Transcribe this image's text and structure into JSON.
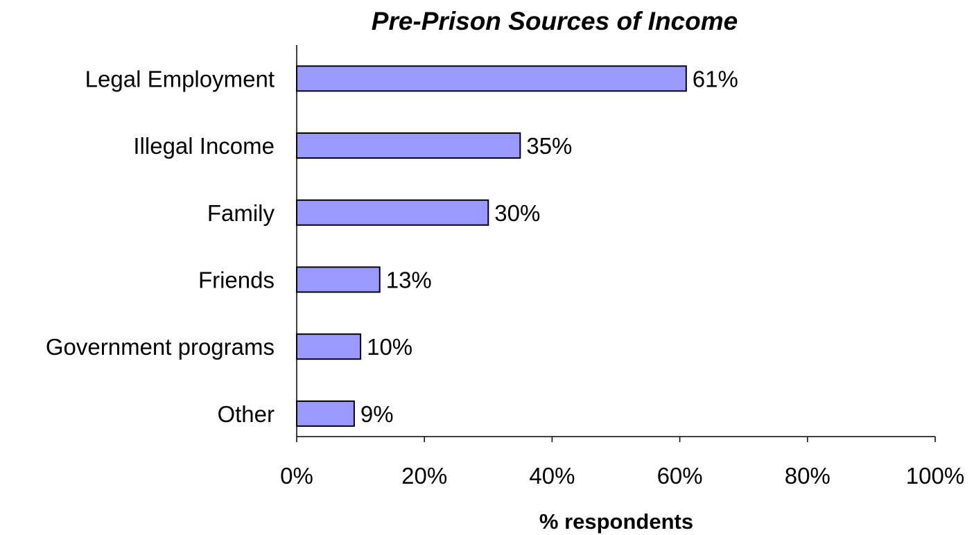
{
  "chart_data": {
    "type": "bar",
    "orientation": "horizontal",
    "title": "Pre-Prison Sources of Income",
    "xlabel": "% respondents",
    "ylabel": "",
    "categories": [
      "Legal Employment",
      "Illegal Income",
      "Family",
      "Friends",
      "Government programs",
      "Other"
    ],
    "values": [
      61,
      35,
      30,
      13,
      10,
      9
    ],
    "data_labels": [
      "61%",
      "35%",
      "30%",
      "13%",
      "10%",
      "9%"
    ],
    "xlim": [
      0,
      100
    ],
    "x_ticks": [
      0,
      20,
      40,
      60,
      80,
      100
    ],
    "x_tick_labels": [
      "0%",
      "20%",
      "40%",
      "60%",
      "80%",
      "100%"
    ],
    "bar_color": "#9999FF",
    "grid": false,
    "legend": "none"
  }
}
